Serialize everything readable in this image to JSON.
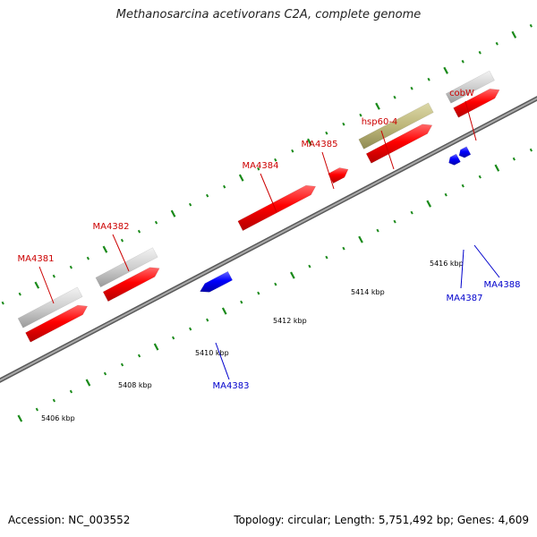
{
  "title": "Methanosarcina acetivorans C2A, complete genome",
  "footer": {
    "accession": "Accession: NC_003552",
    "summary": "Topology: circular; Length: 5,751,492 bp; Genes: 4,609"
  },
  "scale_labels": [
    "5406 kbp",
    "5408 kbp",
    "5410 kbp",
    "5412 kbp",
    "5414 kbp",
    "5416 kbp"
  ],
  "gene_labels_forward": [
    "MA4381",
    "MA4382",
    "MA4384",
    "MA4385",
    "hsp60-4",
    "cobW"
  ],
  "gene_labels_reverse": [
    "MA4383",
    "MA4387",
    "MA4388"
  ],
  "colors": {
    "forward_gene": "#ff0000",
    "reverse_gene": "#0000ff",
    "rna_or_pseudo_gene": "#c8c8c8",
    "highlight_gene": "#bdb77a",
    "axis_line": "#808080",
    "ticks": "#1a8a1a",
    "forward_label": "#cc0000",
    "reverse_label": "#0000cc"
  }
}
